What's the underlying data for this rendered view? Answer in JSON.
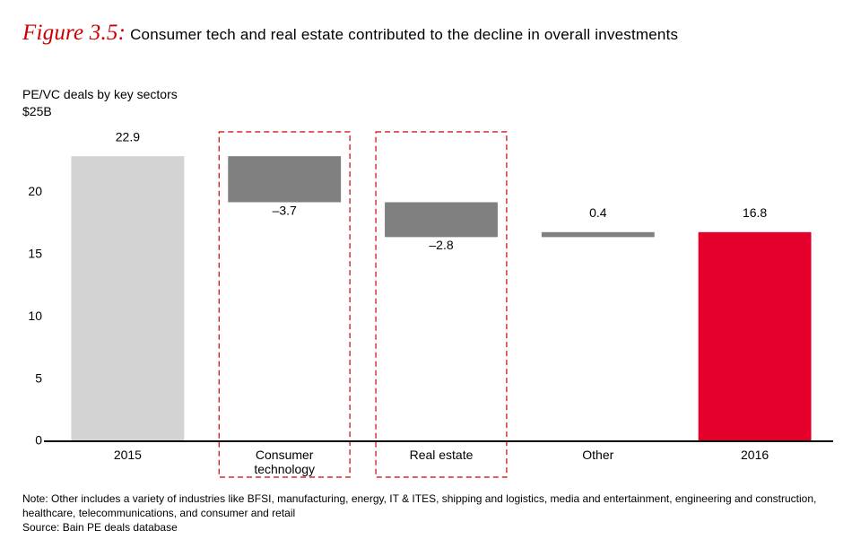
{
  "figure_label": "Figure 3.5:",
  "figure_title": "Consumer tech and real estate contributed to the decline in overall investments",
  "subtitle_line1": "PE/VC deals by key sectors",
  "subtitle_line2": "$25B",
  "chart": {
    "type": "waterfall",
    "ylim": [
      0,
      25
    ],
    "yticks": [
      0,
      5,
      10,
      15,
      20
    ],
    "categories": [
      "2015",
      "Consumer\ntechnology",
      "Real estate",
      "Other",
      "2016"
    ],
    "bars": [
      {
        "label": "2015",
        "value": 22.9,
        "display": "22.9",
        "kind": "total",
        "color": "#d3d3d3",
        "highlight": false,
        "value_y": 24.1
      },
      {
        "label": "Consumer technology",
        "value": -3.7,
        "display": "–3.7",
        "kind": "delta",
        "color": "#808080",
        "highlight": true,
        "value_y": 18.2
      },
      {
        "label": "Real estate",
        "value": -2.8,
        "display": "–2.8",
        "kind": "delta",
        "color": "#808080",
        "highlight": true,
        "value_y": 15.4
      },
      {
        "label": "Other",
        "value": 0.4,
        "display": "0.4",
        "kind": "delta",
        "color": "#808080",
        "highlight": false,
        "value_y": 18.0
      },
      {
        "label": "2016",
        "value": 16.8,
        "display": "16.8",
        "kind": "total",
        "color": "#e4002b",
        "highlight": false,
        "value_y": 18.0
      }
    ],
    "highlight_stroke": "#cc0000",
    "highlight_dash": "6,4",
    "axis_color": "#000000",
    "background_color": "#ffffff",
    "bar_width_ratio": 0.72,
    "label_fontsize": 14,
    "title_fontsize": 17
  },
  "note": "Note: Other includes a variety of industries like BFSI, manufacturing, energy, IT & ITES, shipping and logistics, media and entertainment, engineering and construction, healthcare, telecommunications, and consumer and retail",
  "source": "Source: Bain PE deals database"
}
